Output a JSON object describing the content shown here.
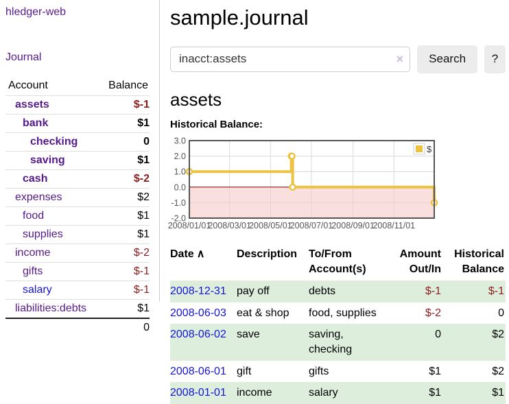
{
  "app": {
    "brand": "hledger-web"
  },
  "nav": {
    "journal": "Journal"
  },
  "sidebar": {
    "columns": {
      "account": "Account",
      "balance": "Balance"
    },
    "accounts": [
      {
        "name": "assets",
        "balance": "$-1"
      },
      {
        "name": "bank",
        "balance": "$1"
      },
      {
        "name": "checking",
        "balance": "0"
      },
      {
        "name": "saving",
        "balance": "$1"
      },
      {
        "name": "cash",
        "balance": "$-2"
      },
      {
        "name": "expenses",
        "balance": "$2"
      },
      {
        "name": "food",
        "balance": "$1"
      },
      {
        "name": "supplies",
        "balance": "$1"
      },
      {
        "name": "income",
        "balance": "$-2"
      },
      {
        "name": "gifts",
        "balance": "$-1"
      },
      {
        "name": "salary",
        "balance": "$-1"
      },
      {
        "name": "liabilities:debts",
        "balance": "$1"
      }
    ],
    "total": "0"
  },
  "header": {
    "title": "sample.journal"
  },
  "search": {
    "query": "inacct:assets",
    "clear_icon": "×",
    "button": "Search",
    "help": "?"
  },
  "account_page": {
    "heading": "assets",
    "chart_title": "Historical Balance:"
  },
  "chart_data": {
    "type": "line",
    "title": "Historical Balance of assets",
    "series": [
      {
        "name": "$",
        "color": "#edc240",
        "steps": true,
        "points": [
          {
            "date": "2008-01-01",
            "day": 0,
            "value": 1
          },
          {
            "date": "2008-06-01",
            "day": 152,
            "value": 2
          },
          {
            "date": "2008-06-02",
            "day": 153,
            "value": 2
          },
          {
            "date": "2008-06-03",
            "day": 154,
            "value": 0
          },
          {
            "date": "2008-12-31",
            "day": 365,
            "value": -1
          }
        ]
      }
    ],
    "xlim_days": [
      0,
      365
    ],
    "ylim": [
      -2,
      3
    ],
    "yticks": [
      {
        "value": 3,
        "label": "3.0"
      },
      {
        "value": 2,
        "label": "2.0"
      },
      {
        "value": 1,
        "label": "1.0"
      },
      {
        "value": 0,
        "label": "0.0"
      },
      {
        "value": -1,
        "label": "-1.0"
      },
      {
        "value": -2,
        "label": "-2.0"
      }
    ],
    "xticks": [
      {
        "day": 0,
        "label": "2008/01/01"
      },
      {
        "day": 60,
        "label": "2008/03/01"
      },
      {
        "day": 121,
        "label": "2008/05/01"
      },
      {
        "day": 182,
        "label": "2008/07/01"
      },
      {
        "day": 244,
        "label": "2008/09/01"
      },
      {
        "day": 305,
        "label": "2008/11/01"
      }
    ],
    "legend": {
      "label": "$",
      "position": "top-right"
    },
    "grid": true,
    "colors": {
      "negative_region": "#f7caca",
      "zero_line": "#8b0000",
      "gridline": "#d8d8d8",
      "plot_border": "#545454",
      "tick_label": "#545454"
    }
  },
  "register": {
    "headers": {
      "date": "Date",
      "sort_icon": "∧",
      "description": "Description",
      "accounts": "To/From\nAccount(s)",
      "amount": "Amount\nOut/In",
      "balance": "Historical\nBalance"
    },
    "rows": [
      {
        "date": "2008-12-31",
        "description": "pay off",
        "accounts": "debts",
        "amount": "$-1",
        "balance": "$-1"
      },
      {
        "date": "2008-06-03",
        "description": "eat & shop",
        "accounts": "food, supplies",
        "amount": "$-2",
        "balance": "0"
      },
      {
        "date": "2008-06-02",
        "description": "save",
        "accounts": "saving,\nchecking",
        "amount": "0",
        "balance": "$2"
      },
      {
        "date": "2008-06-01",
        "description": "gift",
        "accounts": "gifts",
        "amount": "$1",
        "balance": "$2"
      },
      {
        "date": "2008-01-01",
        "description": "income",
        "accounts": "salary",
        "amount": "$1",
        "balance": "$1"
      }
    ]
  }
}
